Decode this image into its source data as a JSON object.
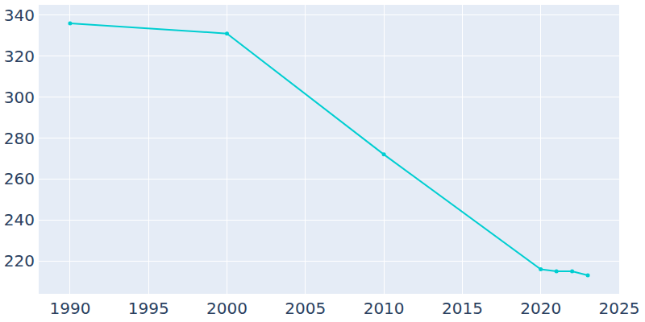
{
  "chart_data": {
    "type": "line",
    "x": [
      1990,
      2000,
      2010,
      2020,
      2021,
      2022,
      2023
    ],
    "values": [
      336,
      331,
      272,
      216,
      215,
      215,
      213
    ],
    "color": "#00ced1",
    "marker": "circle",
    "xlim": [
      1988,
      2025
    ],
    "xticks": [
      1990,
      1995,
      2000,
      2005,
      2010,
      2015,
      2020,
      2025
    ],
    "ylim": [
      204,
      345
    ],
    "yticks": [
      220,
      240,
      260,
      280,
      300,
      320,
      340
    ],
    "grid": true
  }
}
